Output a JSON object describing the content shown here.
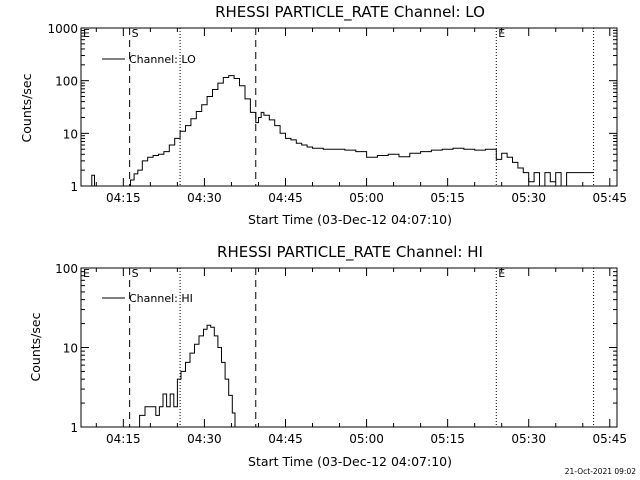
{
  "footer_timestamp": "21-Oct-2021 09:02",
  "chart_data": [
    {
      "type": "line",
      "title": "RHESSI PARTICLE_RATE Channel: LO",
      "xlabel": "Start Time (03-Dec-12 04:07:10)",
      "ylabel": "Counts/sec",
      "yscale": "log",
      "xlim": [
        "04:07:10",
        "05:46:20"
      ],
      "ylim": [
        1,
        1000
      ],
      "x_ticks": [
        "04:15",
        "04:30",
        "04:45",
        "05:00",
        "05:15",
        "05:30",
        "05:45"
      ],
      "y_ticks": [
        "1",
        "10",
        "100",
        "1000"
      ],
      "legend": {
        "position": "top-left",
        "entries": [
          "Channel: LO"
        ]
      },
      "markers": [
        {
          "label": "E",
          "x": "04:07:10",
          "style": "none"
        },
        {
          "label": "S",
          "x": "04:16:10",
          "style": "dashed"
        },
        {
          "label": "",
          "x": "04:25:30",
          "style": "dotted"
        },
        {
          "label": "",
          "x": "04:39:30",
          "style": "dashed"
        },
        {
          "label": "E",
          "x": "05:24:00",
          "style": "dotted"
        },
        {
          "label": "",
          "x": "05:42:00",
          "style": "dotted"
        }
      ],
      "series": [
        {
          "name": "Channel: LO",
          "x": [
            "04:08:40",
            "04:09:10",
            "04:09:40",
            "04:16:00",
            "04:16:20",
            "04:17:00",
            "04:17:40",
            "04:18:30",
            "04:19:30",
            "04:20:30",
            "04:21:30",
            "04:22:30",
            "04:23:30",
            "04:24:30",
            "04:25:30",
            "04:26:30",
            "04:27:30",
            "04:28:30",
            "04:29:30",
            "04:30:30",
            "04:31:30",
            "04:32:30",
            "04:33:30",
            "04:34:30",
            "04:35:30",
            "04:36:30",
            "04:37:30",
            "04:38:30",
            "04:39:30",
            "04:40:00",
            "04:40:30",
            "04:41:00",
            "04:42:00",
            "04:43:00",
            "04:44:00",
            "04:45:00",
            "04:46:00",
            "04:47:00",
            "04:48:00",
            "04:49:00",
            "04:50:00",
            "04:52:00",
            "04:54:00",
            "04:56:00",
            "04:58:00",
            "05:00:00",
            "05:02:00",
            "05:04:00",
            "05:06:00",
            "05:08:00",
            "05:10:00",
            "05:12:00",
            "05:14:00",
            "05:16:00",
            "05:18:00",
            "05:20:00",
            "05:22:00",
            "05:24:00",
            "05:25:00",
            "05:26:00",
            "05:27:00",
            "05:28:00",
            "05:29:00",
            "05:30:00",
            "05:31:00",
            "05:32:00",
            "05:33:00",
            "05:34:00",
            "05:35:00",
            "05:36:00",
            "05:37:00",
            "05:38:00",
            "05:42:00"
          ],
          "y": [
            1,
            1.6,
            1,
            1,
            1.3,
            1.7,
            2.0,
            3.0,
            3.5,
            3.8,
            4.0,
            4.5,
            6.0,
            8.0,
            11,
            14,
            19,
            26,
            35,
            50,
            68,
            90,
            115,
            125,
            110,
            80,
            45,
            25,
            16,
            20,
            25,
            22,
            18,
            14,
            10,
            8,
            7.5,
            6.5,
            6,
            5.5,
            5.2,
            5,
            5,
            4.8,
            4.5,
            3.5,
            3.8,
            4,
            3.6,
            4.2,
            4.5,
            4.8,
            5,
            5.2,
            5,
            4.8,
            5,
            3.2,
            4.2,
            3.5,
            2.8,
            2.2,
            1.8,
            1.2,
            1.8,
            1,
            1.8,
            1.2,
            1.8,
            1,
            1.8,
            1.8,
            1.8
          ]
        }
      ]
    },
    {
      "type": "line",
      "title": "RHESSI PARTICLE_RATE Channel: HI",
      "xlabel": "Start Time (03-Dec-12 04:07:10)",
      "ylabel": "Counts/sec",
      "yscale": "log",
      "xlim": [
        "04:07:10",
        "05:46:20"
      ],
      "ylim": [
        1,
        100
      ],
      "x_ticks": [
        "04:15",
        "04:30",
        "04:45",
        "05:00",
        "05:15",
        "05:30",
        "05:45"
      ],
      "y_ticks": [
        "1",
        "10",
        "100"
      ],
      "legend": {
        "position": "top-left",
        "entries": [
          "Channel: HI"
        ]
      },
      "markers": [
        {
          "label": "E",
          "x": "04:07:10",
          "style": "none"
        },
        {
          "label": "S",
          "x": "04:16:10",
          "style": "dashed"
        },
        {
          "label": "",
          "x": "04:25:30",
          "style": "dotted"
        },
        {
          "label": "",
          "x": "04:39:30",
          "style": "dashed"
        },
        {
          "label": "E",
          "x": "05:24:00",
          "style": "dotted"
        },
        {
          "label": "",
          "x": "05:42:00",
          "style": "dotted"
        }
      ],
      "series": [
        {
          "name": "Channel: HI",
          "x": [
            "04:17:30",
            "04:18:00",
            "04:18:30",
            "04:19:00",
            "04:19:40",
            "04:20:20",
            "04:21:00",
            "04:21:40",
            "04:22:20",
            "04:23:00",
            "04:23:40",
            "04:24:20",
            "04:25:00",
            "04:25:40",
            "04:26:30",
            "04:27:20",
            "04:28:10",
            "04:29:00",
            "04:29:50",
            "04:30:30",
            "04:31:10",
            "04:31:50",
            "04:32:30",
            "04:33:10",
            "04:33:50",
            "04:34:30",
            "04:35:10",
            "04:35:40"
          ],
          "y": [
            1,
            1.4,
            1.4,
            1.8,
            1.8,
            1.8,
            1.4,
            1.8,
            2.6,
            1.8,
            2.6,
            1.8,
            4.0,
            5.0,
            6.5,
            8.5,
            11,
            14,
            17,
            19,
            18,
            14,
            10,
            6.5,
            4.0,
            2.5,
            1.5,
            1
          ]
        }
      ]
    }
  ]
}
